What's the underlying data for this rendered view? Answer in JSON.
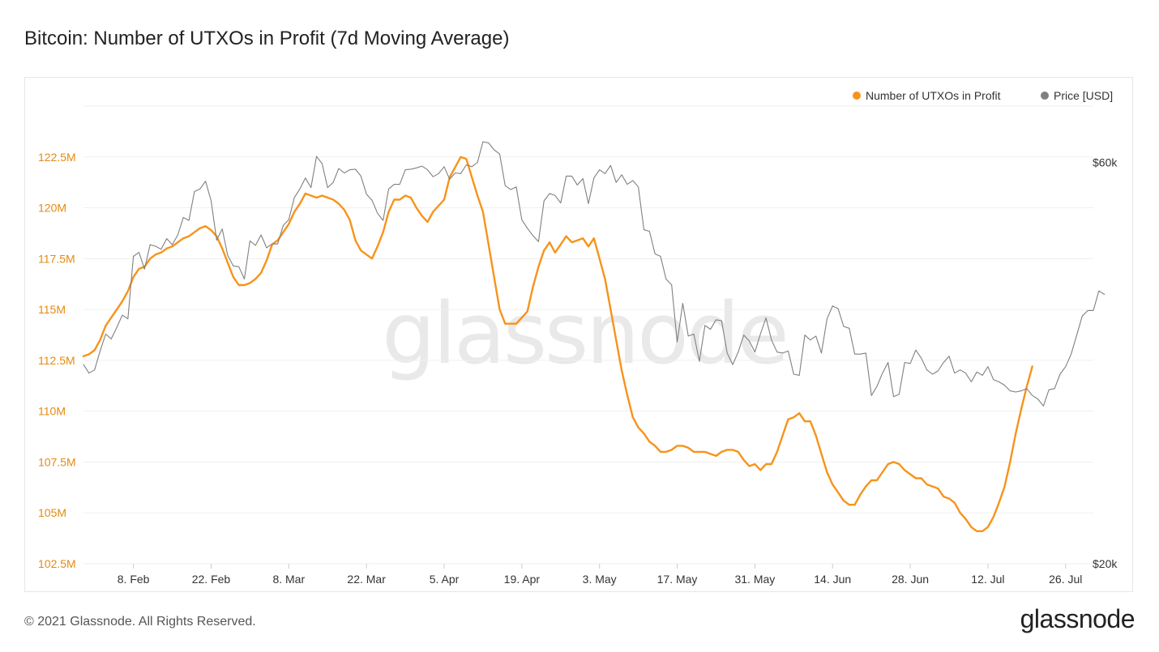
{
  "title": "Bitcoin: Number of UTXOs in Profit (7d Moving Average)",
  "footer": "© 2021 Glassnode. All Rights Reserved.",
  "logo_text": "glassnode",
  "watermark": "glassnode",
  "colors": {
    "utxo": "#f7931a",
    "price": "#808080",
    "left_axis_text": "#e58a10",
    "grid": "#efefef"
  },
  "chart_data": {
    "type": "line",
    "title": "Bitcoin: Number of UTXOs in Profit (7d Moving Average)",
    "x_start": "2021-01-30",
    "x_end": "2021-07-31",
    "x_ticks": [
      {
        "date": "2021-02-08",
        "label": "8. Feb"
      },
      {
        "date": "2021-02-22",
        "label": "22. Feb"
      },
      {
        "date": "2021-03-08",
        "label": "8. Mar"
      },
      {
        "date": "2021-03-22",
        "label": "22. Mar"
      },
      {
        "date": "2021-04-05",
        "label": "5. Apr"
      },
      {
        "date": "2021-04-19",
        "label": "19. Apr"
      },
      {
        "date": "2021-05-03",
        "label": "3. May"
      },
      {
        "date": "2021-05-17",
        "label": "17. May"
      },
      {
        "date": "2021-05-31",
        "label": "31. May"
      },
      {
        "date": "2021-06-14",
        "label": "14. Jun"
      },
      {
        "date": "2021-06-28",
        "label": "28. Jun"
      },
      {
        "date": "2021-07-12",
        "label": "12. Jul"
      },
      {
        "date": "2021-07-26",
        "label": "26. Jul"
      }
    ],
    "left_axis": {
      "unit": "M",
      "range": [
        102.5,
        125
      ],
      "ticks": [
        {
          "value": 102.5,
          "label": "102.5M"
        },
        {
          "value": 105,
          "label": "105M"
        },
        {
          "value": 107.5,
          "label": "107.5M"
        },
        {
          "value": 110,
          "label": "110M"
        },
        {
          "value": 112.5,
          "label": "112.5M"
        },
        {
          "value": 115,
          "label": "115M"
        },
        {
          "value": 117.5,
          "label": "117.5M"
        },
        {
          "value": 120,
          "label": "120M"
        },
        {
          "value": 122.5,
          "label": "122.5M"
        }
      ]
    },
    "right_axis": {
      "scale": "log",
      "range": [
        20000,
        70000
      ],
      "ticks": [
        {
          "value": 20000,
          "label": "$20k"
        },
        {
          "value": 60000,
          "label": "$60k"
        }
      ]
    },
    "legend": [
      {
        "name": "Number of UTXOs in Profit",
        "color": "#f7931a"
      },
      {
        "name": "Price [USD]",
        "color": "#808080"
      }
    ],
    "series": [
      {
        "name": "Number of UTXOs in Profit",
        "axis": "left",
        "color": "#f7931a",
        "start_date": "2021-01-30",
        "values": [
          112.7,
          112.8,
          113,
          113.5,
          114.2,
          114.6,
          115,
          115.4,
          115.9,
          116.6,
          117,
          117.1,
          117.5,
          117.7,
          117.8,
          118,
          118.1,
          118.3,
          118.5,
          118.6,
          118.8,
          119,
          119.1,
          118.9,
          118.6,
          118,
          117.3,
          116.6,
          116.2,
          116.2,
          116.3,
          116.5,
          116.8,
          117.4,
          118.2,
          118.4,
          118.8,
          119.2,
          119.8,
          120.2,
          120.7,
          120.6,
          120.5,
          120.6,
          120.5,
          120.4,
          120.2,
          119.9,
          119.4,
          118.4,
          117.9,
          117.7,
          117.5,
          118.1,
          118.8,
          119.8,
          120.4,
          120.4,
          120.6,
          120.5,
          120,
          119.6,
          119.3,
          119.8,
          120.1,
          120.4,
          121.5,
          122,
          122.5,
          122.4,
          121.5,
          120.6,
          119.8,
          118.2,
          116.6,
          115,
          114.3,
          114.3,
          114.3,
          114.6,
          114.9,
          116.1,
          117.1,
          117.9,
          118.3,
          117.8,
          118.2,
          118.6,
          118.3,
          118.4,
          118.5,
          118.1,
          118.5,
          117.5,
          116.5,
          115,
          113.5,
          112,
          110.8,
          109.7,
          109.2,
          108.9,
          108.5,
          108.3,
          108,
          108,
          108.1,
          108.3,
          108.3,
          108.2,
          108,
          108,
          108,
          107.9,
          107.8,
          108,
          108.1,
          108.1,
          108,
          107.6,
          107.3,
          107.4,
          107.1,
          107.4,
          107.4,
          108,
          108.8,
          109.6,
          109.7,
          109.9,
          109.5,
          109.5,
          108.8,
          107.9,
          107,
          106.4,
          106,
          105.6,
          105.4,
          105.4,
          105.9,
          106.3,
          106.6,
          106.6,
          107,
          107.4,
          107.5,
          107.4,
          107.1,
          106.9,
          106.7,
          106.7,
          106.4,
          106.3,
          106.2,
          105.8,
          105.7,
          105.5,
          105,
          104.7,
          104.3,
          104.1,
          104.1,
          104.3,
          104.8,
          105.5,
          106.3,
          107.5,
          108.9,
          110.1,
          111.2,
          112.2
        ]
      },
      {
        "name": "Price [USD]",
        "axis": "right",
        "color": "#808080",
        "start_date": "2021-01-30",
        "values": [
          34500,
          33700,
          34000,
          35800,
          37500,
          37000,
          38200,
          39500,
          39100,
          46400,
          46900,
          44800,
          47900,
          47700,
          47300,
          48700,
          47900,
          49200,
          51600,
          51200,
          55400,
          55800,
          57000,
          54000,
          48500,
          50000,
          46500,
          45200,
          45100,
          43600,
          48400,
          47800,
          49200,
          47500,
          48000,
          48000,
          50500,
          51300,
          54500,
          55800,
          57500,
          56000,
          61000,
          59800,
          56000,
          56800,
          59000,
          58300,
          58800,
          58900,
          57800,
          55000,
          54100,
          52200,
          51200,
          55800,
          56500,
          56500,
          58800,
          58900,
          59100,
          59400,
          58800,
          57700,
          58200,
          59300,
          57300,
          58300,
          58200,
          59600,
          59300,
          60000,
          63500,
          63300,
          62100,
          61400,
          56300,
          55700,
          56100,
          51300,
          50100,
          49100,
          48300,
          54000,
          55100,
          54800,
          53700,
          57800,
          57800,
          56400,
          57400,
          53600,
          57500,
          58800,
          58200,
          59500,
          56800,
          58000,
          56500,
          57100,
          56100,
          49900,
          49700,
          46700,
          46400,
          43600,
          42900,
          36700,
          40800,
          37300,
          37500,
          34800,
          38400,
          38000,
          39000,
          38900,
          35600,
          34500,
          35700,
          37400,
          36800,
          35700,
          37500,
          39200,
          36900,
          35700,
          35600,
          35800,
          33600,
          33500,
          37400,
          36900,
          37300,
          35600,
          39100,
          40500,
          40200,
          38300,
          38100,
          35500,
          35500,
          35600,
          31700,
          32500,
          33700,
          34700,
          31600,
          31800,
          34700,
          34600,
          35900,
          35100,
          34000,
          33600,
          33900,
          34700,
          35300,
          33700,
          34000,
          33700,
          32900,
          33800,
          33500,
          34300,
          33100,
          32900,
          32600,
          32100,
          32000,
          32100,
          32300,
          31700,
          31400,
          30800,
          32200,
          32300,
          33600,
          34300,
          35500,
          37400,
          39400,
          40000,
          40000,
          42200,
          41800
        ]
      }
    ]
  }
}
